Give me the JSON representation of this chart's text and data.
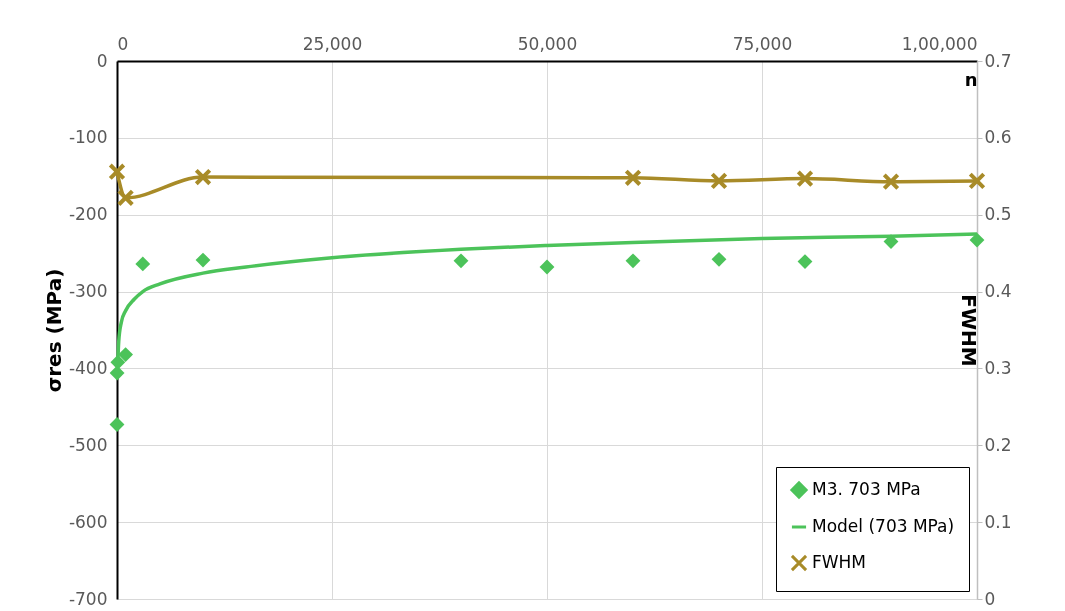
{
  "chart_data": {
    "type": "scatter",
    "xlabel": "n",
    "ylabel": "σres (MPa)",
    "y2label": "FWHM",
    "xlim": [
      0,
      100000
    ],
    "xticks": [
      0,
      {
        "value": 25000,
        "label": "25,000"
      },
      {
        "value": 50000,
        "label": "50,000"
      },
      {
        "value": 75000,
        "label": "75,000"
      },
      {
        "value": 100000,
        "label": "1,00,000"
      }
    ],
    "ylim": [
      -700,
      0
    ],
    "yticks": [
      -700,
      -600,
      -500,
      -400,
      -300,
      -200,
      -100,
      0
    ],
    "y2lim": [
      0,
      0.7
    ],
    "y2ticks": [
      0,
      0.1,
      0.2,
      0.3,
      0.4,
      0.5,
      0.6,
      0.7
    ],
    "grid": true,
    "legend": "bottom right",
    "series": [
      {
        "name": "M3. 703 MPa",
        "marker": "diamond",
        "color": "#4cc35a",
        "x": [
          0,
          10,
          100,
          1000,
          3000,
          10000,
          40000,
          50000,
          60000,
          70000,
          80000,
          90000,
          100000
        ],
        "values": [
          -473,
          -406,
          -392,
          -382,
          -264,
          -259,
          -260,
          -268,
          -260,
          -258,
          -261,
          -235,
          -233
        ]
      },
      {
        "name": "Model (703 MPa)",
        "type": "line",
        "marker": "none",
        "line_style": "solid",
        "color": "#4cc35a",
        "x": [
          100,
          200,
          500,
          1000,
          2000,
          3000,
          5000,
          10000,
          15000,
          25000,
          40000,
          50000,
          60000,
          75000,
          90000,
          100000
        ],
        "values": [
          -390,
          -365,
          -340,
          -325,
          -310,
          -300,
          -290,
          -276,
          -268,
          -256,
          -245,
          -240,
          -236,
          -231,
          -228,
          -225
        ]
      },
      {
        "name": "FWHM",
        "type": "line",
        "marker": "cross",
        "line_style": "solid",
        "axis": "y2",
        "color": "#a88b28",
        "x": [
          0,
          1000,
          10000,
          60000,
          70000,
          80000,
          90000,
          100000
        ],
        "values": [
          0.556,
          0.522,
          0.549,
          0.548,
          0.544,
          0.547,
          0.543,
          0.544
        ]
      }
    ]
  }
}
